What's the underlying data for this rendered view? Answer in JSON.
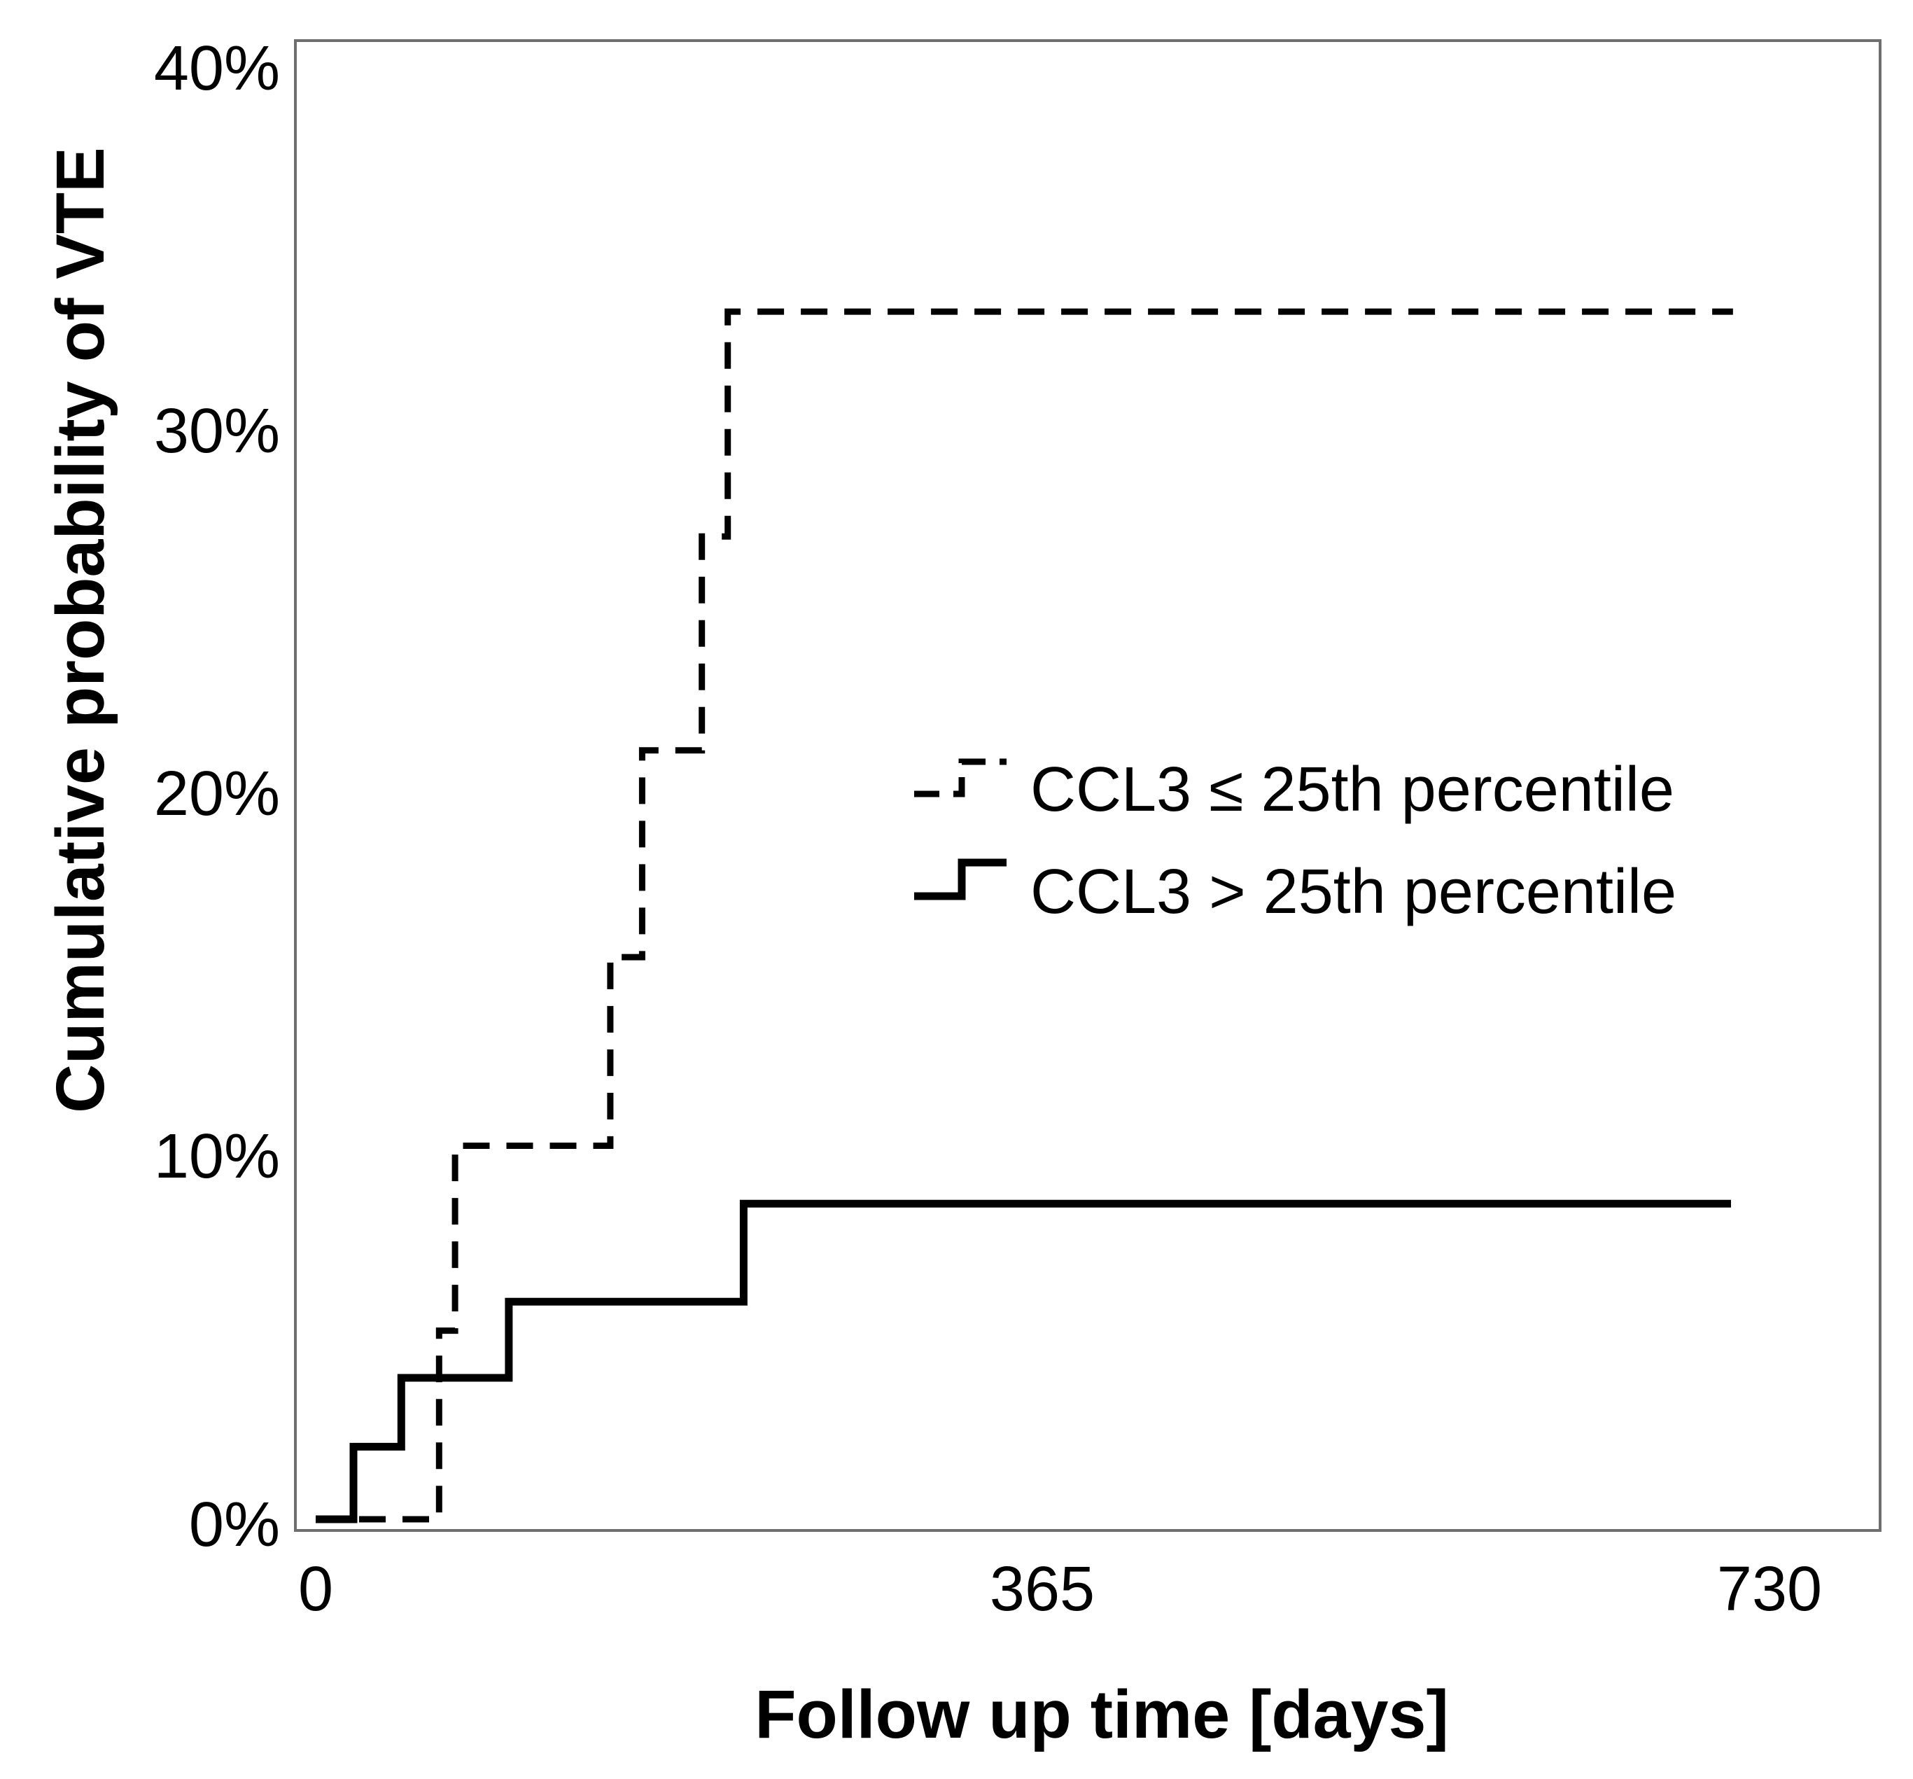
{
  "figure": {
    "background_color": "#ffffff",
    "line_color": "#000000",
    "frame_color": "#6f6f6f"
  },
  "chart_data": {
    "type": "line",
    "subtype": "kaplan-meier-step",
    "title": "",
    "xlabel": "Follow up time [days]",
    "ylabel": "Cumulative probability of VTE",
    "xlim": [
      0,
      730
    ],
    "ylim": [
      0,
      40
    ],
    "grid": "off",
    "legend_position": "inside-right-middle",
    "x_ticks": [
      0,
      365,
      730
    ],
    "x_tick_labels": [
      "0",
      "365",
      "730"
    ],
    "y_ticks": [
      0,
      10,
      20,
      30,
      40
    ],
    "y_tick_labels": [
      "0%",
      "10%",
      "20%",
      "30%",
      "40%"
    ],
    "series": [
      {
        "name": "CCL3 ≤ 25th percentile",
        "line_style": "dashed",
        "color": "#000000",
        "step_points": [
          [
            0,
            0
          ],
          [
            62,
            0
          ],
          [
            62,
            5.2
          ],
          [
            70,
            5.2
          ],
          [
            70,
            10.3
          ],
          [
            148,
            10.3
          ],
          [
            148,
            15.5
          ],
          [
            164,
            15.5
          ],
          [
            164,
            21.2
          ],
          [
            194,
            21.2
          ],
          [
            194,
            27.1
          ],
          [
            207,
            27.1
          ],
          [
            207,
            33.3
          ],
          [
            712,
            33.3
          ]
        ]
      },
      {
        "name": "CCL3 > 25th percentile",
        "line_style": "solid",
        "color": "#000000",
        "step_points": [
          [
            0,
            0
          ],
          [
            19,
            0
          ],
          [
            19,
            2.0
          ],
          [
            43,
            2.0
          ],
          [
            43,
            3.9
          ],
          [
            97,
            3.9
          ],
          [
            97,
            6.0
          ],
          [
            215,
            6.0
          ],
          [
            215,
            8.7
          ],
          [
            711,
            8.7
          ]
        ]
      }
    ]
  }
}
